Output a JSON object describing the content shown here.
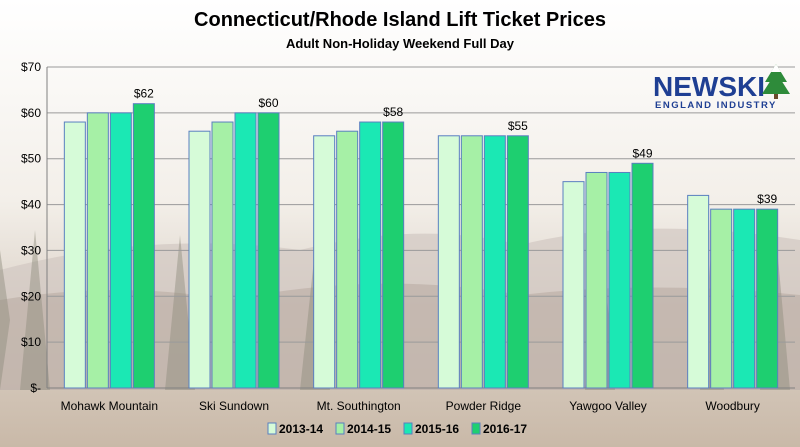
{
  "chart_data": {
    "type": "bar",
    "title": "Connecticut/Rhode Island Lift Ticket Prices",
    "subtitle": "Adult Non-Holiday Weekend Full Day",
    "categories": [
      "Mohawk Mountain",
      "Ski Sundown",
      "Mt. Southington",
      "Powder Ridge",
      "Yawgoo Valley",
      "Woodbury"
    ],
    "series": [
      {
        "name": "2013-14",
        "color": "#d6fbd8",
        "values": [
          58,
          56,
          55,
          55,
          45,
          42
        ]
      },
      {
        "name": "2014-15",
        "color": "#a6f0a6",
        "values": [
          60,
          58,
          56,
          55,
          47,
          39
        ]
      },
      {
        "name": "2015-16",
        "color": "#1be8b4",
        "values": [
          60,
          60,
          58,
          55,
          47,
          39
        ]
      },
      {
        "name": "2016-17",
        "color": "#1ecf70",
        "values": [
          62,
          60,
          58,
          55,
          49,
          39
        ]
      }
    ],
    "data_labels": [
      "$62",
      "$60",
      "$58",
      "$55",
      "$49",
      "$39"
    ],
    "yticks": [
      "$-",
      "$10",
      "$20",
      "$30",
      "$40",
      "$50",
      "$60",
      "$70"
    ],
    "ylim": [
      0,
      70
    ],
    "grid": true,
    "legend_position": "bottom",
    "bar_border_color": "#5a7fc0"
  },
  "logo": {
    "main": "NEWSKI",
    "sub": "ENGLAND INDUSTRY",
    "tree_icon": "snowy-pine-tree-icon",
    "color": "#1f3f93"
  }
}
